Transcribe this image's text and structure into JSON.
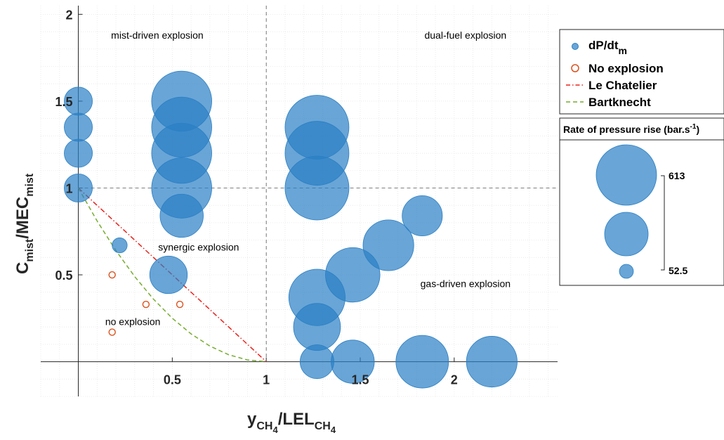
{
  "chart_data": {
    "type": "scatter",
    "xlabel": {
      "main": "y",
      "sub1": "CH",
      "subsub1": "4",
      "mid": "/LEL",
      "sub2": "CH",
      "subsub2": "4"
    },
    "ylabel": {
      "main1": "C",
      "sub1": "mist",
      "main2": "/MEC",
      "sub2": "mist"
    },
    "xlim": [
      -0.2,
      2.55
    ],
    "ylim": [
      -0.2,
      2.05
    ],
    "x_ticks": [
      "0.5",
      "1",
      "1.5",
      "2"
    ],
    "y_ticks": [
      "0.5",
      "1",
      "1.5",
      "2"
    ],
    "grid": "dotted",
    "regions": [
      {
        "text": "mist-driven explosion",
        "x": 0.42,
        "y": 1.88
      },
      {
        "text": "dual-fuel explosion",
        "x": 2.06,
        "y": 1.88
      },
      {
        "text": "synergic explosion",
        "x": 0.64,
        "y": 0.66
      },
      {
        "text": "gas-driven explosion",
        "x": 2.06,
        "y": 0.45
      },
      {
        "text": "no explosion",
        "x": 0.29,
        "y": 0.23
      }
    ],
    "reference_lines": {
      "x": 1,
      "y": 1
    },
    "series": [
      {
        "name": "dP/dt",
        "name_sub": "m",
        "kind": "bubble",
        "color": "#2a7fc4",
        "points": [
          {
            "x": 0,
            "y": 1.5,
            "r": 0.075
          },
          {
            "x": 0,
            "y": 1.35,
            "r": 0.075
          },
          {
            "x": 0,
            "y": 1.2,
            "r": 0.075
          },
          {
            "x": 0,
            "y": 1,
            "r": 0.075
          },
          {
            "x": 0.22,
            "y": 0.67,
            "r": 0.04
          },
          {
            "x": 0.48,
            "y": 0.5,
            "r": 0.1
          },
          {
            "x": 0.55,
            "y": 1.5,
            "r": 0.16
          },
          {
            "x": 0.55,
            "y": 1.35,
            "r": 0.16
          },
          {
            "x": 0.55,
            "y": 1.2,
            "r": 0.16
          },
          {
            "x": 0.55,
            "y": 1.0,
            "r": 0.16
          },
          {
            "x": 0.55,
            "y": 0.84,
            "r": 0.115
          },
          {
            "x": 1.27,
            "y": 1.35,
            "r": 0.17
          },
          {
            "x": 1.27,
            "y": 1.2,
            "r": 0.17
          },
          {
            "x": 1.27,
            "y": 1.0,
            "r": 0.17
          },
          {
            "x": 1.27,
            "y": 0.37,
            "r": 0.15
          },
          {
            "x": 1.27,
            "y": 0.2,
            "r": 0.125
          },
          {
            "x": 1.27,
            "y": 0.0,
            "r": 0.09
          },
          {
            "x": 1.46,
            "y": 0.0,
            "r": 0.115
          },
          {
            "x": 1.46,
            "y": 0.5,
            "r": 0.145
          },
          {
            "x": 1.65,
            "y": 0.67,
            "r": 0.135
          },
          {
            "x": 1.83,
            "y": 0.84,
            "r": 0.107
          },
          {
            "x": 1.83,
            "y": 0.0,
            "r": 0.14
          },
          {
            "x": 2.2,
            "y": 0.0,
            "r": 0.135
          }
        ]
      },
      {
        "name": "No explosion",
        "kind": "open-circle",
        "color": "#d9531e",
        "points": [
          {
            "x": 0.18,
            "y": 0.5
          },
          {
            "x": 0.36,
            "y": 0.33
          },
          {
            "x": 0.54,
            "y": 0.33
          },
          {
            "x": 0.18,
            "y": 0.17
          }
        ]
      },
      {
        "name": "Le Chatelier",
        "kind": "line",
        "style": "dash-dot",
        "color": "#e8231c",
        "x": [
          0,
          1
        ],
        "y": [
          1,
          0
        ]
      },
      {
        "name": "Bartknecht",
        "kind": "line",
        "style": "dashed",
        "color": "#77ac30",
        "x": [
          0,
          0.1,
          0.2,
          0.3,
          0.4,
          0.5,
          0.6,
          0.7,
          0.8,
          0.9,
          1.0
        ],
        "y": [
          1,
          0.81,
          0.64,
          0.49,
          0.36,
          0.25,
          0.16,
          0.09,
          0.04,
          0.01,
          0
        ]
      }
    ],
    "legend": {
      "placement": "right"
    },
    "size_legend": {
      "title_main": "Rate of pressure rise (bar.s",
      "title_sup": "-1",
      "title_end": ")",
      "max_label": "613",
      "min_label": "52.5"
    }
  }
}
